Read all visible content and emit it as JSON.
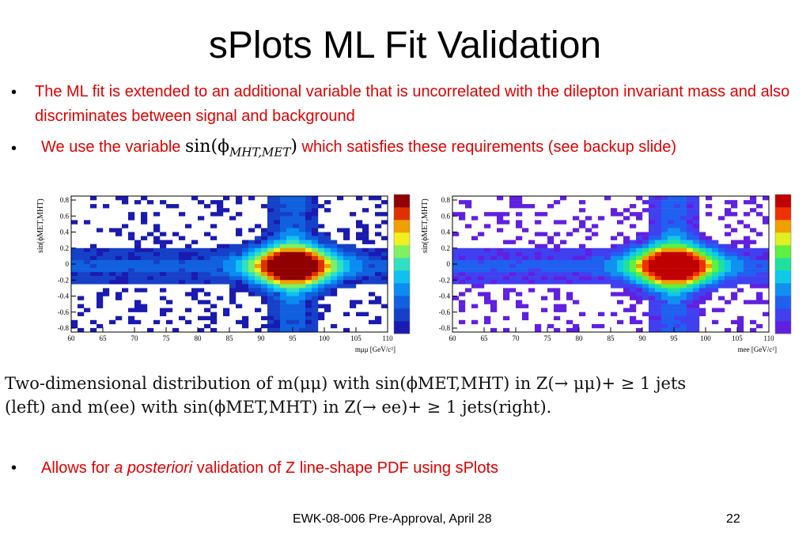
{
  "slide": {
    "title": "sPlots ML Fit Validation",
    "bullet_symbol": "•",
    "bullet1": "The ML fit is extended to an additional variable that is uncorrelated with the dilepton invariant mass and also discriminates between signal and background",
    "bullet2_pre": "We use the variable",
    "bullet2_math_fn": "sin(ϕ",
    "bullet2_math_sub": "MHT,MET",
    "bullet2_math_close": ")",
    "bullet2_post": "which satisfies these requirements (see backup slide)",
    "bullet3_pre": "Allows for ",
    "bullet3_italic": "a posteriori",
    "bullet3_post": " validation of Z line-shape PDF using sPlots"
  },
  "plots": {
    "left": {
      "ylabel": "sin(ϕMET,MHT)",
      "xlabel": "mμμ [GeV/c²]",
      "x_ticks": [
        "60",
        "65",
        "70",
        "75",
        "80",
        "85",
        "90",
        "95",
        "100",
        "105",
        "110"
      ],
      "y_ticks": [
        "0.8",
        "0.6",
        "0.4",
        "0.2",
        "0",
        "-0.2",
        "-0.4",
        "-0.6",
        "-0.8"
      ],
      "palette": "blue-to-red"
    },
    "right": {
      "ylabel": "sin(ϕMET,MHT)",
      "xlabel": "mee [GeV/c²]",
      "x_ticks": [
        "60",
        "65",
        "70",
        "75",
        "80",
        "85",
        "90",
        "95",
        "100",
        "105",
        "110"
      ],
      "y_ticks": [
        "0.8",
        "0.6",
        "0.4",
        "0.2",
        "0",
        "-0.2",
        "-0.4",
        "-0.6",
        "-0.8"
      ],
      "palette": "purple-to-red"
    }
  },
  "caption": {
    "line1": "Two-dimensional distribution of m(μμ) with sin(ϕMET,MHT) in Z(→ μμ)+ ≥ 1 jets",
    "line2": "(left) and m(ee) with sin(ϕMET,MHT) in Z(→ ee)+ ≥ 1 jets(right)."
  },
  "footer": {
    "center": "EWK-08-006 Pre-Approval, April 28",
    "page": "22"
  }
}
